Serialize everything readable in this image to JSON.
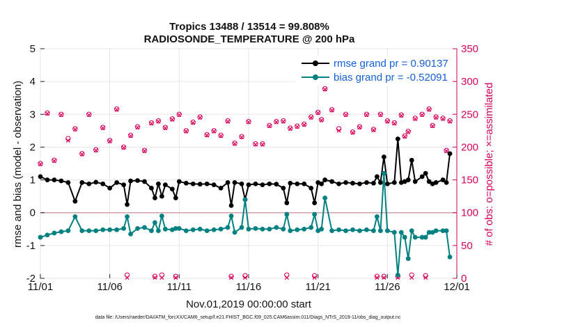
{
  "chart_data": {
    "type": "line",
    "title": "Tropics 13488 / 13514 = 99.808%",
    "subtitle": "RADIOSONDE_TEMPERATURE @ 200 hPa",
    "xlabel": "Nov.01,2019 00:00:00 start",
    "ylabel_left": "rmse and bias (model - observation)",
    "ylabel_right": "# of obs: o=possible; ×=assimilated",
    "footer": "data file: /Users/raeder/DAI/ATM_forcXX/CAM6_setup/f.e21.FHIST_BGC.f09_025.CAM6assim.011/Diags_NTrS_2019-11/obs_diag_output.nc",
    "x_ticks": [
      "11/01",
      "11/06",
      "11/11",
      "11/16",
      "11/21",
      "11/26",
      "12/01"
    ],
    "x_tick_days": [
      0,
      5,
      10,
      15,
      20,
      25,
      30
    ],
    "xlim": [
      0,
      30
    ],
    "ylim_left": [
      -2,
      5
    ],
    "y_ticks_left": [
      "-2",
      "-1",
      "0",
      "1",
      "2",
      "3",
      "4",
      "5"
    ],
    "ylim_right": [
      0,
      350
    ],
    "y_ticks_right": [
      "0",
      "50",
      "100",
      "150",
      "200",
      "250",
      "300",
      "350"
    ],
    "legend": [
      "rmse grand pr = 0.90137",
      "bias grand pr = -0.52091"
    ],
    "colors": {
      "rmse": "#000000",
      "bias": "#008080",
      "obs": "#d8005a",
      "zero_line": "#d0a0a8",
      "legend_text": "#1560d8"
    },
    "series": [
      {
        "name": "rmse",
        "x": [
          0,
          0.5,
          1,
          1.5,
          2,
          2.5,
          3,
          3.5,
          4,
          4.5,
          5,
          5.5,
          6,
          6.25,
          6.5,
          7,
          7.5,
          8,
          8.25,
          8.5,
          8.75,
          9,
          9.5,
          9.75,
          10,
          10.5,
          11,
          11.5,
          12,
          12.5,
          13,
          13.5,
          13.75,
          14,
          14.5,
          14.75,
          15,
          15.5,
          16,
          16.5,
          17,
          17.5,
          17.75,
          18,
          18.5,
          19,
          19.5,
          19.75,
          20,
          20.25,
          20.5,
          21,
          21.5,
          22,
          22.5,
          23,
          23.5,
          24,
          24.25,
          24.5,
          24.75,
          25,
          25.5,
          25.75,
          26,
          26.25,
          26.5,
          26.75,
          27,
          27.5,
          27.75,
          28,
          28.25,
          28.5,
          29,
          29.25,
          29.5
        ],
        "values": [
          1.1,
          1.0,
          1.0,
          0.97,
          0.92,
          0.35,
          0.92,
          0.88,
          0.93,
          0.88,
          0.75,
          0.92,
          0.85,
          0.25,
          0.97,
          0.98,
          0.95,
          0.75,
          0.45,
          0.88,
          0.5,
          0.85,
          0.72,
          0.45,
          0.95,
          0.9,
          0.88,
          0.87,
          0.88,
          0.85,
          0.75,
          0.92,
          0.22,
          0.92,
          0.88,
          0.4,
          0.85,
          0.88,
          0.85,
          0.88,
          0.87,
          0.75,
          0.3,
          0.9,
          0.88,
          0.88,
          0.75,
          0.3,
          0.92,
          0.88,
          1.0,
          0.95,
          0.88,
          0.92,
          0.9,
          0.88,
          0.92,
          0.9,
          1.1,
          0.92,
          1.7,
          0.88,
          0.92,
          2.25,
          0.92,
          0.95,
          1.0,
          1.6,
          0.95,
          1.1,
          1.2,
          0.95,
          0.88,
          0.92,
          1.0,
          0.92,
          1.8
        ]
      },
      {
        "name": "bias",
        "x": [
          0,
          0.5,
          1,
          1.5,
          2,
          2.5,
          3,
          3.5,
          4,
          4.5,
          5,
          5.5,
          6,
          6.25,
          6.5,
          7,
          7.5,
          8,
          8.25,
          8.5,
          8.75,
          9,
          9.5,
          9.75,
          10,
          10.5,
          11,
          11.5,
          12,
          12.5,
          13,
          13.5,
          13.75,
          14,
          14.5,
          14.75,
          15,
          15.5,
          16,
          16.5,
          17,
          17.5,
          17.75,
          18,
          18.5,
          19,
          19.5,
          19.75,
          20,
          20.25,
          20.5,
          21,
          21.5,
          22,
          22.5,
          23,
          23.5,
          24,
          24.25,
          24.5,
          24.75,
          25,
          25.5,
          25.75,
          26,
          26.25,
          26.5,
          26.75,
          27,
          27.5,
          27.75,
          28,
          28.25,
          28.5,
          29,
          29.25,
          29.5
        ],
        "values": [
          -0.75,
          -0.68,
          -0.62,
          -0.58,
          -0.55,
          -0.12,
          -0.55,
          -0.55,
          -0.55,
          -0.52,
          -0.52,
          -0.52,
          -0.48,
          -0.12,
          -0.65,
          -0.48,
          -0.45,
          -0.55,
          -0.3,
          -0.55,
          -0.1,
          -0.5,
          -0.52,
          -0.48,
          -0.48,
          -0.55,
          -0.52,
          -0.5,
          -0.55,
          -0.52,
          -0.5,
          -0.45,
          -0.1,
          -0.6,
          -0.45,
          0.4,
          -0.5,
          -0.48,
          -0.5,
          -0.5,
          -0.45,
          -0.5,
          -0.05,
          -0.55,
          -0.52,
          -0.5,
          -0.45,
          -0.05,
          -0.55,
          -0.5,
          0.45,
          -0.55,
          -0.52,
          -0.55,
          -0.52,
          -0.55,
          -0.52,
          -0.55,
          -0.12,
          -0.55,
          1.2,
          -0.55,
          -0.6,
          -1.9,
          -0.6,
          -0.75,
          -1.4,
          -0.55,
          -0.75,
          -0.75,
          -0.75,
          -0.6,
          -0.6,
          -0.55,
          -0.55,
          -0.55,
          -1.35
        ]
      }
    ],
    "obs_possible": {
      "x": [
        0,
        0.5,
        1,
        1.5,
        2,
        2.5,
        3,
        3.5,
        4,
        4.5,
        5,
        5.5,
        6,
        6.25,
        6.5,
        7,
        7.5,
        8,
        8.25,
        8.5,
        8.75,
        9,
        9.5,
        9.75,
        10,
        10.5,
        11,
        11.5,
        12,
        12.5,
        13,
        13.5,
        13.75,
        14,
        14.5,
        14.75,
        15,
        15.5,
        16,
        16.5,
        17,
        17.5,
        17.75,
        18,
        18.5,
        19,
        19.5,
        19.75,
        20,
        20.25,
        20.5,
        21,
        21.5,
        22,
        22.5,
        23,
        23.5,
        24,
        24.25,
        24.5,
        24.75,
        25,
        25.5,
        25.75,
        26,
        26.25,
        26.5,
        26.75,
        27,
        27.5,
        27.75,
        28,
        28.25,
        28.5,
        29,
        29.25,
        29.5
      ],
      "values": [
        175,
        252,
        180,
        250,
        213,
        228,
        190,
        250,
        196,
        230,
        210,
        258,
        200,
        5,
        218,
        231,
        195,
        237,
        3,
        240,
        5,
        230,
        243,
        3,
        250,
        225,
        238,
        246,
        219,
        225,
        218,
        240,
        3,
        206,
        216,
        4,
        239,
        205,
        205,
        233,
        239,
        240,
        5,
        229,
        232,
        235,
        246,
        4,
        253,
        242,
        289,
        257,
        228,
        250,
        223,
        231,
        250,
        227,
        3,
        250,
        3,
        240,
        237,
        3,
        249,
        217,
        224,
        5,
        244,
        250,
        4,
        258,
        233,
        246,
        244,
        195,
        240
      ]
    },
    "obs_assimilated": {
      "x": [
        0,
        0.5,
        1,
        1.5,
        2,
        2.5,
        3,
        3.5,
        4,
        4.5,
        5,
        5.5,
        6,
        6.25,
        6.5,
        7,
        7.5,
        8,
        8.25,
        8.5,
        8.75,
        9,
        9.5,
        9.75,
        10,
        10.5,
        11,
        11.5,
        12,
        12.5,
        13,
        13.5,
        13.75,
        14,
        14.5,
        14.75,
        15,
        15.5,
        16,
        16.5,
        17,
        17.5,
        17.75,
        18,
        18.5,
        19,
        19.5,
        19.75,
        20,
        20.25,
        20.5,
        21,
        21.5,
        22,
        22.5,
        23,
        23.5,
        24,
        24.25,
        24.5,
        24.75,
        25,
        25.5,
        25.75,
        26,
        26.25,
        26.5,
        26.75,
        27,
        27.5,
        27.75,
        28,
        28.25,
        28.5,
        29,
        29.25,
        29.5
      ],
      "values": [
        174,
        251,
        179,
        249,
        210,
        227,
        189,
        249,
        195,
        229,
        209,
        257,
        199,
        1,
        217,
        230,
        194,
        236,
        1,
        239,
        1,
        229,
        242,
        1,
        249,
        224,
        237,
        245,
        218,
        224,
        217,
        239,
        1,
        205,
        215,
        1,
        238,
        204,
        204,
        232,
        238,
        239,
        1,
        228,
        231,
        234,
        245,
        1,
        252,
        241,
        288,
        256,
        225,
        249,
        222,
        230,
        249,
        226,
        1,
        249,
        1,
        239,
        236,
        1,
        248,
        216,
        223,
        1,
        243,
        249,
        1,
        257,
        232,
        245,
        243,
        194,
        239
      ]
    }
  }
}
